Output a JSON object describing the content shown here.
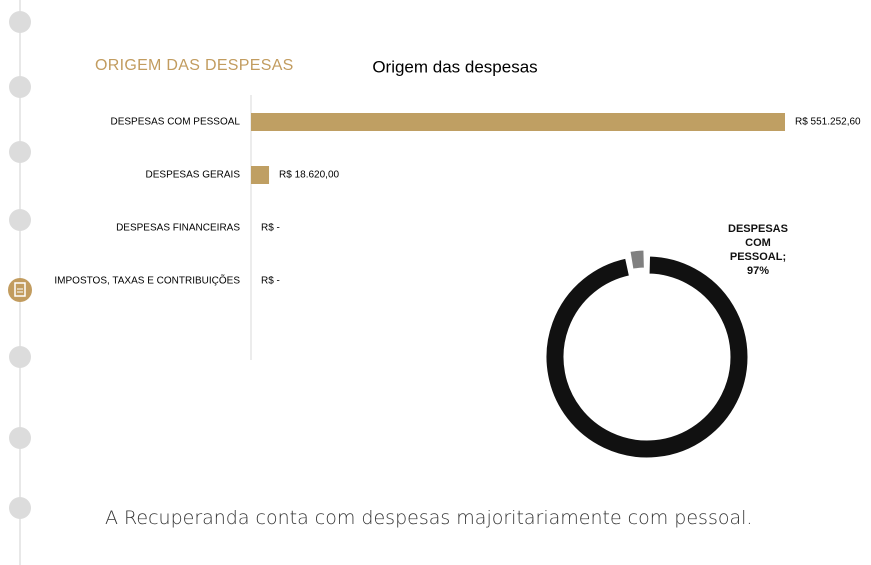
{
  "header": {
    "title": "ORIGEM DAS DESPESAS"
  },
  "chart_data": [
    {
      "type": "bar",
      "orientation": "horizontal",
      "title": "Origem das despesas",
      "categories": [
        "DESPESAS COM PESSOAL",
        "DESPESAS GERAIS",
        "DESPESAS FINANCEIRAS",
        "IMPOSTOS, TAXAS E CONTRIBUIÇÕES"
      ],
      "values": [
        551252.6,
        18620,
        0,
        0
      ],
      "value_labels": [
        "R$ 551.252,60",
        "R$ 18.620,00",
        "R$ -",
        "R$ -"
      ],
      "color": "#bf9f63"
    },
    {
      "type": "pie",
      "donut": true,
      "categories": [
        "DESPESAS COM PESSOAL",
        "DESPESAS GERAIS"
      ],
      "values": [
        97,
        3
      ],
      "colors": [
        "#111111",
        "#808080"
      ],
      "value_labels": [
        "DESPESAS COM PESSOAL; 97%",
        null
      ]
    }
  ],
  "caption": "A Recuperanda conta com despesas majoritariamente com pessoal."
}
